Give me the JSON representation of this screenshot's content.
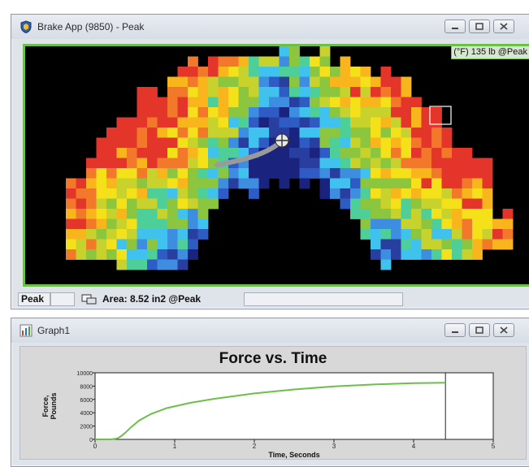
{
  "heat_window": {
    "title": "Brake App (9850) - Peak",
    "readout": "(°F) 135 lb @Peak",
    "status_mode": "Peak",
    "status_area": "Area: 8.52 in2 @Peak"
  },
  "graph_window": {
    "title": "Graph1"
  },
  "icons": {
    "app": "shield-app-icon",
    "graph": "chart-icon",
    "minimize": "minimize-icon",
    "restore": "restore-icon",
    "close": "close-icon",
    "area_selection": "area-selection-icon",
    "cursor": "crosshair-cursor-icon"
  },
  "colors": {
    "heat_frame_border": "#6cbf49",
    "curve": "#6cbf49"
  },
  "chart_data": {
    "type": "line",
    "title": "Force vs. Time",
    "xlabel": "Time, Seconds",
    "ylabel": "Force,\nPounds",
    "xlim": [
      0,
      5
    ],
    "ylim": [
      0,
      10000
    ],
    "x_ticks": [
      "0",
      "1",
      "2",
      "3",
      "4",
      "5"
    ],
    "y_ticks": [
      "0",
      "2000",
      "4000",
      "6000",
      "8000",
      "10000"
    ],
    "grid": false,
    "series": [
      {
        "x": [
          0,
          0.2,
          0.28,
          0.33,
          0.38,
          0.45,
          0.55,
          0.7,
          0.9,
          1.2,
          1.5,
          2.0,
          2.5,
          3.0,
          3.5,
          4.0,
          4.4
        ],
        "y": [
          0,
          0,
          150,
          500,
          1000,
          1800,
          2800,
          3800,
          4700,
          5500,
          6100,
          6900,
          7500,
          7950,
          8250,
          8450,
          8500
        ]
      }
    ],
    "end_marker_x": 4.4
  }
}
